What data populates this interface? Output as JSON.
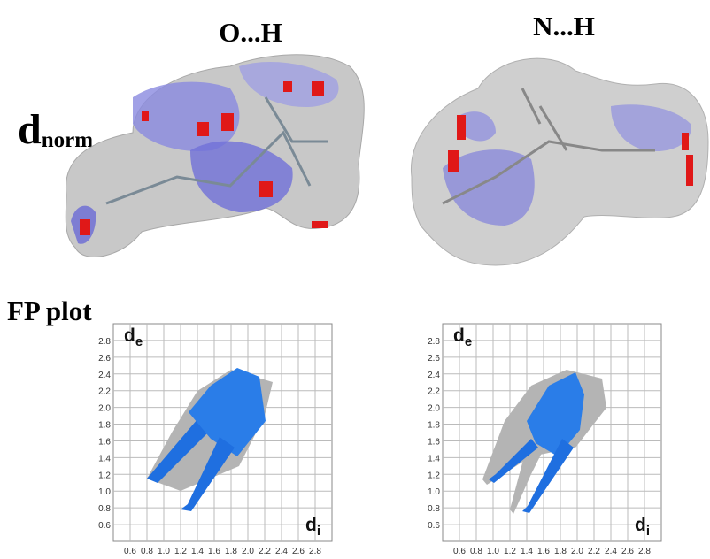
{
  "titles": {
    "left": "O...H",
    "right": "N...H"
  },
  "dnorm": {
    "main": "d",
    "sub": "norm"
  },
  "fp_label": "FP plot",
  "plots": [
    {
      "xlim": [
        0.4,
        3.0
      ],
      "ylim": [
        0.4,
        3.0
      ],
      "xticks": [
        0.6,
        0.8,
        {
          "value": 1,
          "label": "1.0"
        },
        1.2,
        1.4,
        1.6,
        1.8,
        {
          "value": 2,
          "label": "2.0"
        },
        2.2,
        2.4,
        2.6,
        2.8
      ],
      "yticks": [
        0.6,
        0.8,
        {
          "value": 1,
          "label": "1.0"
        },
        1.2,
        1.4,
        1.6,
        1.8,
        {
          "value": 2,
          "label": "2.0"
        },
        2.2,
        2.4,
        2.6,
        2.8
      ],
      "x_label": {
        "main": "d",
        "sub": "i"
      },
      "y_label": {
        "main": "d",
        "sub": "e"
      }
    },
    {
      "xlim": [
        0.4,
        3.0
      ],
      "ylim": [
        0.4,
        3.0
      ],
      "xticks": [
        0.6,
        0.8,
        {
          "value": 1,
          "label": "1.0"
        },
        1.2,
        1.4,
        1.6,
        1.8,
        {
          "value": 2,
          "label": "2.0"
        },
        2.2,
        2.4,
        2.6,
        2.8
      ],
      "yticks": [
        0.6,
        0.8,
        {
          "value": 1,
          "label": "1.0"
        },
        1.2,
        1.4,
        1.6,
        1.8,
        {
          "value": 2,
          "label": "2.0"
        },
        2.2,
        2.4,
        2.6,
        2.8
      ],
      "x_label": {
        "main": "d",
        "sub": "i"
      },
      "y_label": {
        "main": "d",
        "sub": "e"
      }
    }
  ]
}
